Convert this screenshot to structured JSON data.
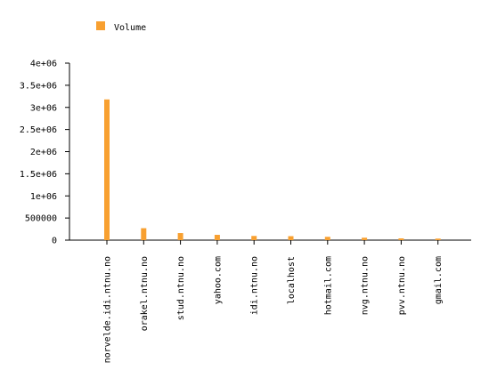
{
  "chart_data": {
    "type": "bar",
    "title": "",
    "xlabel": "",
    "ylabel": "",
    "ylim": [
      0,
      4000000
    ],
    "yticks": [
      {
        "value": 0,
        "label": "0"
      },
      {
        "value": 500000,
        "label": "500000"
      },
      {
        "value": 1000000,
        "label": "1e+06"
      },
      {
        "value": 1500000,
        "label": "1.5e+06"
      },
      {
        "value": 2000000,
        "label": "2e+06"
      },
      {
        "value": 2500000,
        "label": "2.5e+06"
      },
      {
        "value": 3000000,
        "label": "3e+06"
      },
      {
        "value": 3500000,
        "label": "3.5e+06"
      },
      {
        "value": 4000000,
        "label": "4e+06"
      }
    ],
    "categories": [
      "norvelde.idi.ntnu.no",
      "orakel.ntnu.no",
      "stud.ntnu.no",
      "yahoo.com",
      "idi.ntnu.no",
      "localhost",
      "hotmail.com",
      "nvg.ntnu.no",
      "pvv.ntnu.no",
      "gmail.com"
    ],
    "series": [
      {
        "name": "Volume",
        "color": "#f8a030",
        "values": [
          3180000,
          270000,
          160000,
          120000,
          95000,
          90000,
          75000,
          55000,
          40000,
          35000
        ]
      }
    ],
    "grid": false,
    "legend": "top-left"
  }
}
